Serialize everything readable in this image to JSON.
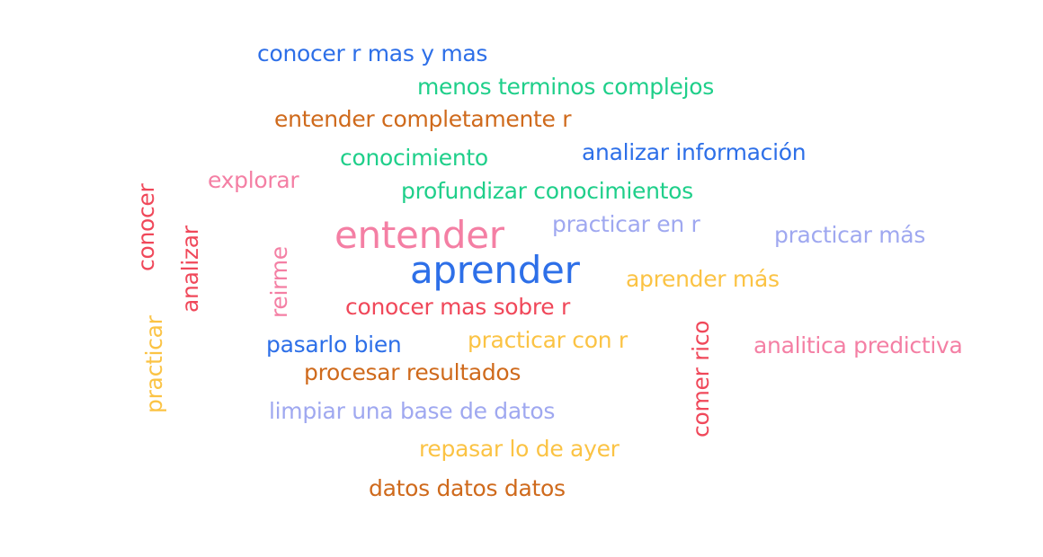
{
  "words": {
    "w01": {
      "text": "conocer r mas y mas",
      "color": "#2d6fe8"
    },
    "w02": {
      "text": "menos terminos complejos",
      "color": "#1fcf8a"
    },
    "w03": {
      "text": "entender completamente r",
      "color": "#cf6a1c"
    },
    "w04": {
      "text": "conocimiento",
      "color": "#1fcf8a"
    },
    "w05": {
      "text": "analizar información",
      "color": "#2d6fe8"
    },
    "w06": {
      "text": "explorar",
      "color": "#f47fa4"
    },
    "w07": {
      "text": "profundizar conocimientos",
      "color": "#1fcf8a"
    },
    "w08": {
      "text": "entender",
      "color": "#f47fa4"
    },
    "w09": {
      "text": "practicar en r",
      "color": "#9fa8f0"
    },
    "w10": {
      "text": "practicar más",
      "color": "#9fa8f0"
    },
    "w11": {
      "text": "aprender",
      "color": "#2d6fe8"
    },
    "w12": {
      "text": "aprender más",
      "color": "#fbc344"
    },
    "w13": {
      "text": "conocer mas sobre r",
      "color": "#f0485a"
    },
    "w14": {
      "text": "pasarlo bien",
      "color": "#2d6fe8"
    },
    "w15": {
      "text": "practicar con r",
      "color": "#fbc344"
    },
    "w16": {
      "text": "analitica predictiva",
      "color": "#f47fa4"
    },
    "w17": {
      "text": "procesar resultados",
      "color": "#cf6a1c"
    },
    "w18": {
      "text": "limpiar una base de datos",
      "color": "#9fa8f0"
    },
    "w19": {
      "text": "repasar lo de ayer",
      "color": "#fbc344"
    },
    "w20": {
      "text": "datos datos datos",
      "color": "#cf6a1c"
    },
    "v01": {
      "text": "conocer",
      "color": "#f0485a"
    },
    "v02": {
      "text": "analizar",
      "color": "#f0485a"
    },
    "v03": {
      "text": "reirme",
      "color": "#f47fa4"
    },
    "v04": {
      "text": "practicar",
      "color": "#fbc344"
    },
    "v05": {
      "text": "comer rico",
      "color": "#f0485a"
    }
  }
}
